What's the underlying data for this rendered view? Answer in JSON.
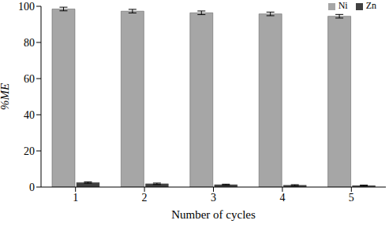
{
  "chart_data": {
    "type": "bar",
    "x_label": "Number of cycles",
    "y_label": "%ME",
    "categories": [
      "1",
      "2",
      "3",
      "4",
      "5"
    ],
    "series": [
      {
        "name": "Ni",
        "color": "#a6a6a6",
        "values": [
          98.5,
          97.3,
          96.4,
          95.8,
          94.5
        ],
        "errors": [
          1.0,
          1.0,
          1.0,
          1.0,
          1.0
        ]
      },
      {
        "name": "Zn",
        "color": "#404040",
        "values": [
          2.5,
          1.8,
          1.3,
          1.0,
          0.8
        ],
        "errors": [
          0.4,
          0.4,
          0.3,
          0.3,
          0.3
        ]
      }
    ],
    "ylim": [
      0,
      100
    ],
    "yticks": [
      0,
      20,
      40,
      60,
      80,
      100
    ],
    "grid": false,
    "legend": "top-right"
  }
}
